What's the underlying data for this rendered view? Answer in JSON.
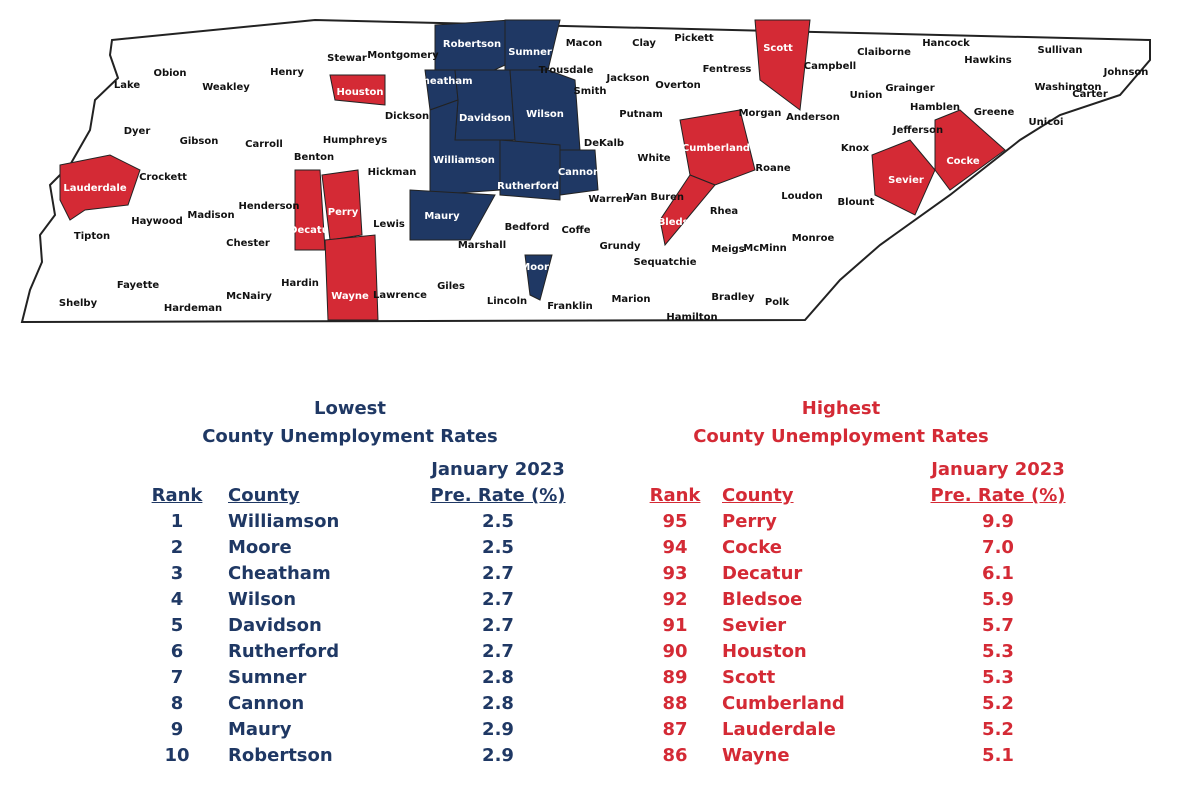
{
  "map": {
    "counties": [
      {
        "name": "Lake"
      },
      {
        "name": "Obion"
      },
      {
        "name": "Weakley"
      },
      {
        "name": "Henry"
      },
      {
        "name": "Stewar"
      },
      {
        "name": "Montgomery"
      },
      {
        "name": "Robertson",
        "color": "#1f3864"
      },
      {
        "name": "Sumner",
        "color": "#1f3864"
      },
      {
        "name": "Macon"
      },
      {
        "name": "Clay"
      },
      {
        "name": "Pickett"
      },
      {
        "name": "Scott",
        "color": "#d42a35"
      },
      {
        "name": "Claiborne"
      },
      {
        "name": "Hancock"
      },
      {
        "name": "Sullivan"
      },
      {
        "name": "Johnson"
      },
      {
        "name": "Hawkins"
      },
      {
        "name": "Campbell"
      },
      {
        "name": "Trousdale"
      },
      {
        "name": "Cheatham",
        "color": "#1f3864"
      },
      {
        "name": "Houston",
        "color": "#d42a35"
      },
      {
        "name": "Jackson"
      },
      {
        "name": "Overton"
      },
      {
        "name": "Fentress"
      },
      {
        "name": "Smith"
      },
      {
        "name": "Union"
      },
      {
        "name": "Grainger"
      },
      {
        "name": "Hamblen"
      },
      {
        "name": "Washington"
      },
      {
        "name": "Carter"
      },
      {
        "name": "Unicoi"
      },
      {
        "name": "Greene"
      },
      {
        "name": "Dyer"
      },
      {
        "name": "Gibson"
      },
      {
        "name": "Carroll"
      },
      {
        "name": "Benton"
      },
      {
        "name": "Humphreys"
      },
      {
        "name": "Dickson"
      },
      {
        "name": "Davidson",
        "color": "#1f3864"
      },
      {
        "name": "Wilson",
        "color": "#1f3864"
      },
      {
        "name": "Putnam"
      },
      {
        "name": "Cumberland",
        "color": "#d42a35"
      },
      {
        "name": "Morgan"
      },
      {
        "name": "Anderson"
      },
      {
        "name": "Jefferson"
      },
      {
        "name": "Knox"
      },
      {
        "name": "Cocke",
        "color": "#d42a35"
      },
      {
        "name": "DeKalb"
      },
      {
        "name": "White"
      },
      {
        "name": "Lauderdale",
        "color": "#d42a35"
      },
      {
        "name": "Crockett"
      },
      {
        "name": "Williamson",
        "color": "#1f3864"
      },
      {
        "name": "Rutherford",
        "color": "#1f3864"
      },
      {
        "name": "Cannon",
        "color": "#1f3864"
      },
      {
        "name": "Hickman"
      },
      {
        "name": "Sevier",
        "color": "#d42a35"
      },
      {
        "name": "Roane"
      },
      {
        "name": "Loudon"
      },
      {
        "name": "Blount"
      },
      {
        "name": "Haywood"
      },
      {
        "name": "Madison"
      },
      {
        "name": "Henderson"
      },
      {
        "name": "Decatu",
        "color": "#d42a35"
      },
      {
        "name": "Perry",
        "color": "#d42a35"
      },
      {
        "name": "Lewis"
      },
      {
        "name": "Maury",
        "color": "#1f3864"
      },
      {
        "name": "Marshall"
      },
      {
        "name": "Bedford"
      },
      {
        "name": "Coffe"
      },
      {
        "name": "Warren"
      },
      {
        "name": "Van Buren"
      },
      {
        "name": "Bledsoe",
        "color": "#d42a35"
      },
      {
        "name": "Rhea"
      },
      {
        "name": "Meigs"
      },
      {
        "name": "McMinn"
      },
      {
        "name": "Monroe"
      },
      {
        "name": "Tipton"
      },
      {
        "name": "Chester"
      },
      {
        "name": "Grundy"
      },
      {
        "name": "Sequatchie"
      },
      {
        "name": "Shelby"
      },
      {
        "name": "Fayette"
      },
      {
        "name": "Hardeman"
      },
      {
        "name": "McNairy"
      },
      {
        "name": "Hardin"
      },
      {
        "name": "Wayne",
        "color": "#d42a35"
      },
      {
        "name": "Lawrence"
      },
      {
        "name": "Giles"
      },
      {
        "name": "Lincoln"
      },
      {
        "name": "Moore",
        "color": "#1f3864"
      },
      {
        "name": "Franklin"
      },
      {
        "name": "Marion"
      },
      {
        "name": "Bradley"
      },
      {
        "name": "Polk"
      },
      {
        "name": "Hamilton"
      }
    ]
  },
  "tables": [
    {
      "color": "#1f3864",
      "title": "Lowest",
      "subtitle": "County Unemployment Rates",
      "period": "January 2023",
      "headers": [
        "Rank",
        "County",
        "Pre. Rate (%)"
      ],
      "rows": [
        [
          1,
          "Williamson",
          "2.5"
        ],
        [
          2,
          "Moore",
          "2.5"
        ],
        [
          3,
          "Cheatham",
          "2.7"
        ],
        [
          4,
          "Wilson",
          "2.7"
        ],
        [
          5,
          "Davidson",
          "2.7"
        ],
        [
          6,
          "Rutherford",
          "2.7"
        ],
        [
          7,
          "Sumner",
          "2.8"
        ],
        [
          8,
          "Cannon",
          "2.8"
        ],
        [
          9,
          "Maury",
          "2.9"
        ],
        [
          10,
          "Robertson",
          "2.9"
        ]
      ]
    },
    {
      "color": "#d42a35",
      "title": "Highest",
      "subtitle": "County Unemployment Rates",
      "period": "January 2023",
      "headers": [
        "Rank",
        "County",
        "Pre. Rate (%)"
      ],
      "rows": [
        [
          95,
          "Perry",
          "9.9"
        ],
        [
          94,
          "Cocke",
          "7.0"
        ],
        [
          93,
          "Decatur",
          "6.1"
        ],
        [
          92,
          "Bledsoe",
          "5.9"
        ],
        [
          91,
          "Sevier",
          "5.7"
        ],
        [
          90,
          "Houston",
          "5.3"
        ],
        [
          89,
          "Scott",
          "5.3"
        ],
        [
          88,
          "Cumberland",
          "5.2"
        ],
        [
          87,
          "Lauderdale",
          "5.2"
        ],
        [
          86,
          "Wayne",
          "5.1"
        ]
      ]
    }
  ]
}
